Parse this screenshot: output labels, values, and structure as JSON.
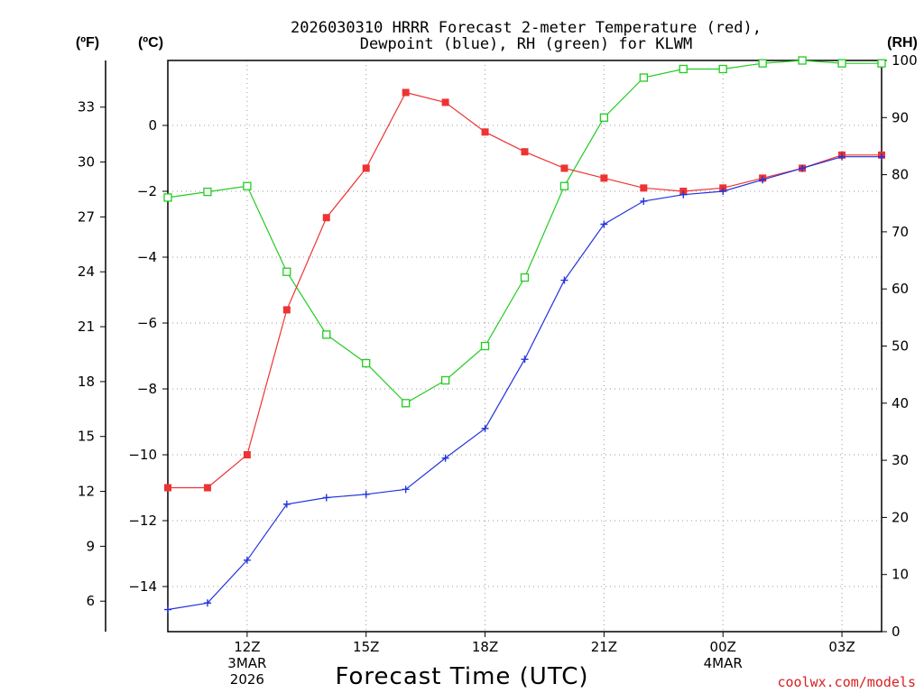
{
  "chart_data": {
    "type": "line",
    "title_line1": "2026030310 HRRR Forecast 2-meter Temperature (red),",
    "title_line2": "Dewpoint (blue), RH (green) for KLWM",
    "xlabel": "Forecast Time (UTC)",
    "credit": "coolwx.com/models",
    "units": {
      "fahrenheit": "(ºF)",
      "celsius": "(ºC)",
      "rh": "(RH)"
    },
    "x_hours": [
      10,
      11,
      12,
      13,
      14,
      15,
      16,
      17,
      18,
      19,
      20,
      21,
      22,
      23,
      24,
      25,
      26,
      27,
      28
    ],
    "x_ticks": [
      {
        "hour": 12,
        "lines": [
          "12Z",
          "3MAR",
          "2026"
        ]
      },
      {
        "hour": 15,
        "lines": [
          "15Z"
        ]
      },
      {
        "hour": 18,
        "lines": [
          "18Z"
        ]
      },
      {
        "hour": 21,
        "lines": [
          "21Z"
        ]
      },
      {
        "hour": 24,
        "lines": [
          "00Z",
          "4MAR"
        ]
      },
      {
        "hour": 27,
        "lines": [
          "03Z"
        ]
      }
    ],
    "x_range": [
      10,
      28
    ],
    "celsius_range": [
      -15.0,
      2.4
    ],
    "celsius_ticks": [
      "0",
      "−2",
      "−4",
      "−6",
      "−8",
      "−10",
      "−12",
      "−14"
    ],
    "celsius_tick_values": [
      0,
      -2,
      -4,
      -6,
      -8,
      -10,
      -12,
      -14
    ],
    "fahrenheit_ticks": [
      "33",
      "30",
      "27",
      "24",
      "21",
      "18",
      "15",
      "12",
      "9",
      "6"
    ],
    "fahrenheit_tick_values": [
      33,
      30,
      27,
      24,
      21,
      18,
      15,
      12,
      9,
      6
    ],
    "rh_range": [
      0,
      100
    ],
    "rh_ticks": [
      "100",
      "90",
      "80",
      "70",
      "60",
      "50",
      "40",
      "30",
      "20",
      "10",
      "0"
    ],
    "rh_tick_values": [
      100,
      90,
      80,
      70,
      60,
      50,
      40,
      30,
      20,
      10,
      0
    ],
    "series": [
      {
        "name": "Temperature",
        "axis": "celsius",
        "color": "#ee3333",
        "marker": "filled-square",
        "values": [
          -11.0,
          -11.0,
          -10.0,
          -5.6,
          -2.8,
          -1.3,
          1.0,
          0.7,
          -0.2,
          -0.8,
          -1.3,
          -1.6,
          -1.9,
          -2.0,
          -1.9,
          -1.6,
          -1.3,
          -0.9,
          -0.9
        ]
      },
      {
        "name": "Dewpoint",
        "axis": "celsius",
        "color": "#2233dd",
        "marker": "plus",
        "values": [
          -14.7,
          -14.5,
          -13.2,
          -11.5,
          -11.3,
          -11.2,
          -11.05,
          -10.1,
          -9.2,
          -7.1,
          -4.7,
          -3.0,
          -2.3,
          -2.1,
          -2.0,
          -1.65,
          -1.3,
          -0.95,
          -0.95
        ]
      },
      {
        "name": "RH",
        "axis": "rh",
        "color": "#22cc22",
        "marker": "open-square",
        "values": [
          76,
          77,
          78,
          63,
          52,
          47,
          40,
          44,
          50,
          62,
          78,
          90,
          97,
          98.5,
          98.5,
          99.5,
          100,
          99.5,
          99.5
        ]
      }
    ]
  }
}
